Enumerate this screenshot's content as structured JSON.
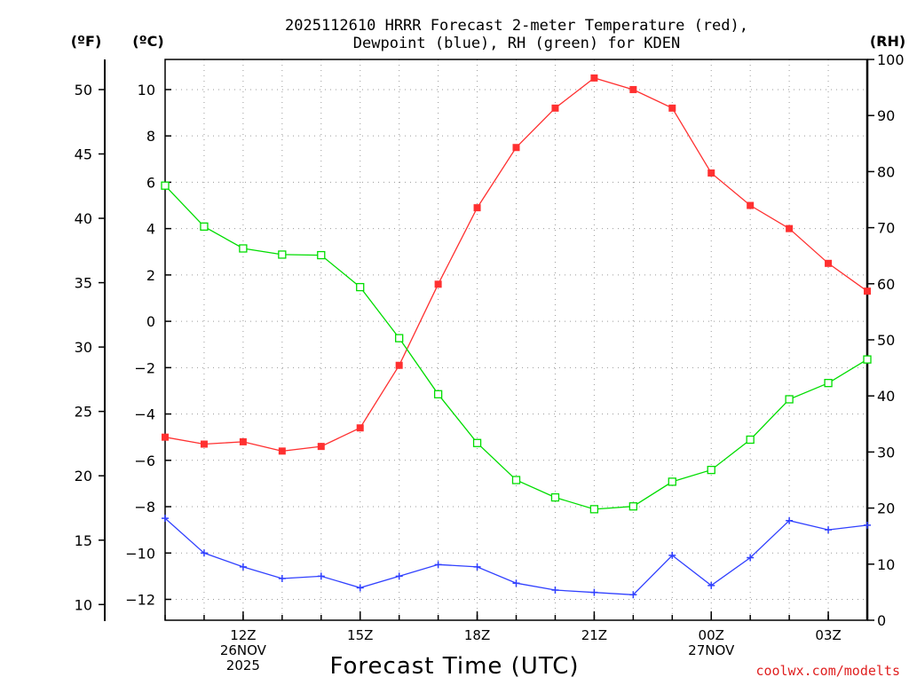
{
  "chart_data": {
    "type": "line",
    "title_lines": [
      "2025112610 HRRR Forecast 2-meter Temperature (red),",
      "Dewpoint (blue), RH (green) for KDEN"
    ],
    "unit_labels": {
      "fahrenheit": "(ºF)",
      "celsius": "(ºC)",
      "rh": "(RH)"
    },
    "xlabel": "Forecast Time (UTC)",
    "credit": "coolwx.com/modelts",
    "x_hours": [
      10,
      11,
      12,
      13,
      14,
      15,
      16,
      17,
      18,
      19,
      20,
      21,
      22,
      23,
      24,
      25,
      26,
      27,
      28
    ],
    "xlim": [
      10,
      28
    ],
    "x_ticks": [
      {
        "x": 12,
        "lines": [
          "12Z",
          "26NOV",
          "2025"
        ]
      },
      {
        "x": 15,
        "lines": [
          "15Z"
        ]
      },
      {
        "x": 18,
        "lines": [
          "18Z"
        ]
      },
      {
        "x": 21,
        "lines": [
          "21Z"
        ]
      },
      {
        "x": 24,
        "lines": [
          "00Z",
          "27NOV"
        ]
      },
      {
        "x": 27,
        "lines": [
          "03Z"
        ]
      }
    ],
    "celsius_axis": {
      "ylim": [
        -12.9,
        11.3
      ],
      "ticks": [
        10,
        8,
        6,
        4,
        2,
        0,
        -2,
        -4,
        -6,
        -8,
        -10,
        -12
      ],
      "tick_labels": [
        "10",
        "8",
        "6",
        "4",
        "2",
        "0",
        "−2",
        "−4",
        "−6",
        "−8",
        "−10",
        "−12"
      ]
    },
    "fahrenheit_axis": {
      "ticks": [
        50,
        45,
        40,
        35,
        30,
        25,
        20,
        15,
        10
      ]
    },
    "rh_axis": {
      "ylim": [
        0,
        100
      ],
      "ticks": [
        100,
        90,
        80,
        70,
        60,
        50,
        40,
        30,
        20,
        10,
        0
      ]
    },
    "series": [
      {
        "name": "2-meter Temperature",
        "color": "#ff3030",
        "marker": "filled-square",
        "axis": "celsius",
        "values": [
          -5.0,
          -5.3,
          -5.2,
          -5.6,
          -5.4,
          -4.6,
          -1.9,
          1.6,
          4.9,
          7.5,
          9.2,
          10.5,
          10.0,
          9.2,
          6.4,
          5.0,
          4.0,
          2.5,
          1.3
        ]
      },
      {
        "name": "Dewpoint",
        "color": "#3040ff",
        "marker": "plus",
        "axis": "celsius",
        "values": [
          -8.5,
          -10.0,
          -10.6,
          -11.1,
          -11.0,
          -11.5,
          -11.0,
          -10.5,
          -10.6,
          -11.3,
          -11.6,
          -11.7,
          -11.8,
          -10.1,
          -11.4,
          -10.2,
          -8.6,
          -9.0,
          -8.8
        ]
      },
      {
        "name": "RH",
        "color": "#00dd00",
        "marker": "open-square",
        "axis": "rh",
        "values": [
          77.5,
          70.2,
          66.3,
          65.2,
          65.1,
          59.4,
          50.3,
          40.3,
          31.6,
          25.0,
          21.9,
          19.8,
          20.3,
          24.7,
          26.8,
          32.2,
          39.4,
          42.3,
          46.5
        ]
      }
    ],
    "grid": true
  }
}
